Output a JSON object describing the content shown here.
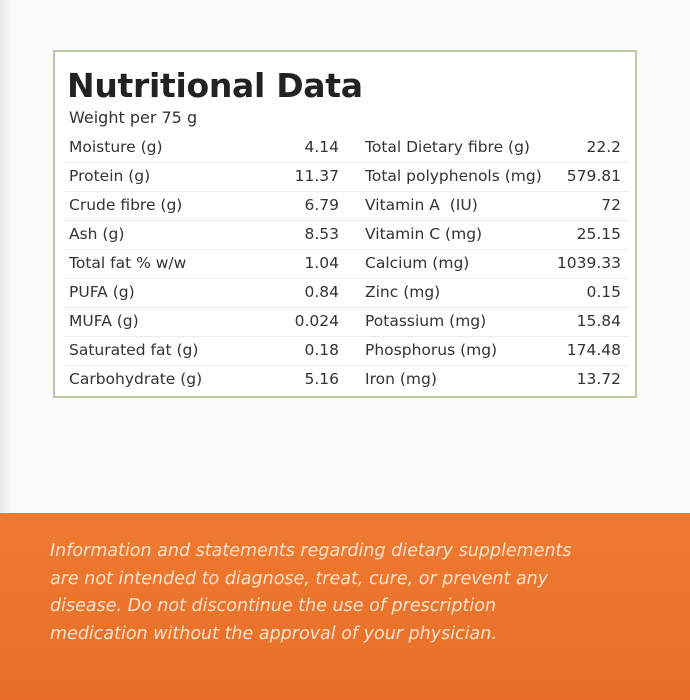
{
  "panel": {
    "title": "Nutritional Data",
    "subtitle": "Weight per 75 g",
    "rows": [
      [
        "Moisture (g)",
        4.14,
        "Total Dietary fibre (g)",
        22.2
      ],
      [
        "Protein (g)",
        11.37,
        "Total polyphenols (mg)",
        579.81
      ],
      [
        "Crude fibre (g)",
        6.79,
        "Vitamin A  (IU)",
        72
      ],
      [
        "Ash (g)",
        8.53,
        "Vitamin C (mg)",
        25.15
      ],
      [
        "Total fat % w/w",
        1.04,
        "Calcium (mg)",
        1039.33
      ],
      [
        "PUFA (g)",
        0.84,
        "Zinc (mg)",
        0.15
      ],
      [
        "MUFA (g)",
        0.024,
        "Potassium (mg)",
        15.84
      ],
      [
        "Saturated fat (g)",
        0.18,
        "Phosphorus (mg)",
        174.48
      ],
      [
        "Carbohydrate (g)",
        5.16,
        "Iron (mg)",
        13.72
      ]
    ]
  },
  "disclaimer": {
    "lines": [
      "Information and statements regarding dietary supplements",
      "are not intended to diagnose, treat, cure, or prevent any",
      "disease. Do not discontinue the use of prescription",
      "medication without the approval of your physician."
    ]
  }
}
